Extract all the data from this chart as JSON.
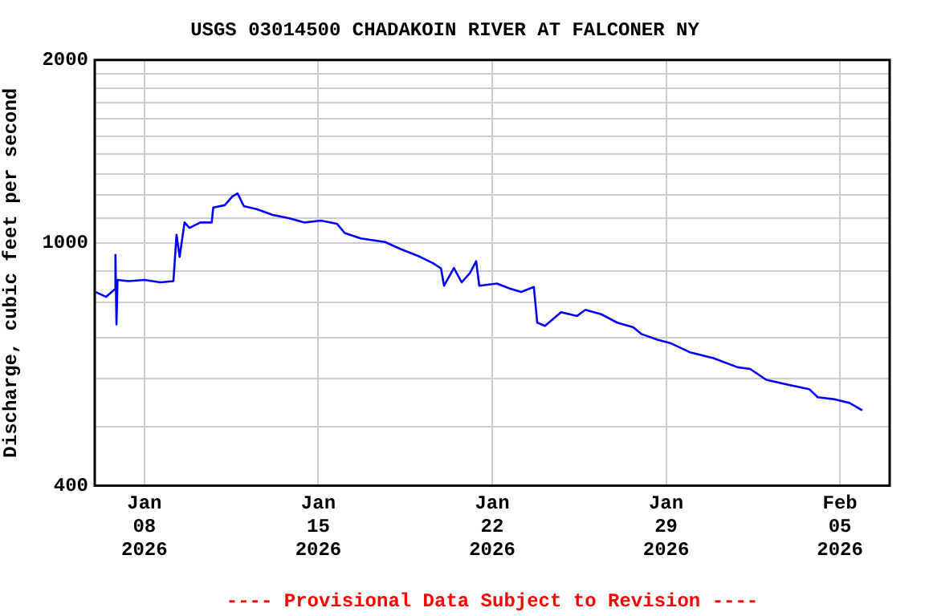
{
  "chart_data": {
    "type": "line",
    "title": "USGS 03014500 CHADAKOIN RIVER AT FALCONER NY",
    "ylabel": "Discharge, cubic feet per second",
    "annotations": [
      "---- Provisional Data Subject to Revision ----"
    ],
    "log": "y",
    "grid": true,
    "legend": false,
    "marker": "none",
    "line_style": "solid",
    "xlim": [
      "2026-01-06",
      "2026-02-07"
    ],
    "xticks": [
      {
        "value": "2026-01-08",
        "label": "Jan\n08\n2026"
      },
      {
        "value": "2026-01-15",
        "label": "Jan\n15\n2026"
      },
      {
        "value": "2026-01-22",
        "label": "Jan\n22\n2026"
      },
      {
        "value": "2026-01-29",
        "label": "Jan\n29\n2026"
      },
      {
        "value": "2026-02-05",
        "label": "Feb\n05\n2026"
      }
    ],
    "ylim": [
      400,
      2000
    ],
    "yticks": [
      400,
      {
        "value": 500,
        "label": null
      },
      {
        "value": 600,
        "label": null
      },
      {
        "value": 700,
        "label": null
      },
      {
        "value": 800,
        "label": null
      },
      {
        "value": 900,
        "label": null
      },
      1000,
      {
        "value": 1100,
        "label": null
      },
      {
        "value": 1200,
        "label": null
      },
      {
        "value": 1300,
        "label": null
      },
      {
        "value": 1400,
        "label": null
      },
      {
        "value": 1500,
        "label": null
      },
      {
        "value": 1600,
        "label": null
      },
      {
        "value": 1700,
        "label": null
      },
      {
        "value": 1800,
        "label": null
      },
      {
        "value": 1900,
        "label": null
      },
      2000
    ],
    "series": [
      {
        "color": "#0000ff",
        "x": [
          "2026-01-06T01:00",
          "2026-01-06T11:00",
          "2026-01-06T19:00",
          "2026-01-06T20:00",
          "2026-01-06T21:00",
          "2026-01-06T22:00",
          "2026-01-07T08:30",
          "2026-01-08T00:00",
          "2026-01-08T15:30",
          "2026-01-09T04:00",
          "2026-01-09T07:00",
          "2026-01-09T10:00",
          "2026-01-09T14:45",
          "2026-01-09T19:30",
          "2026-01-10T06:00",
          "2026-01-10T17:00",
          "2026-01-10T18:30",
          "2026-01-11T05:30",
          "2026-01-11T13:00",
          "2026-01-11T18:00",
          "2026-01-12T00:00",
          "2026-01-12T12:30",
          "2026-01-13T04:00",
          "2026-01-13T19:30",
          "2026-01-14T11:00",
          "2026-01-15T02:30",
          "2026-01-15T18:00",
          "2026-01-16T01:30",
          "2026-01-16T17:00",
          "2026-01-17T16:30",
          "2026-01-18T08:00",
          "2026-01-19T02:30",
          "2026-01-19T14:45",
          "2026-01-19T22:30",
          "2026-01-20T01:30",
          "2026-01-20T11:00",
          "2026-01-20T18:30",
          "2026-01-21T02:30",
          "2026-01-21T08:30",
          "2026-01-21T11:30",
          "2026-01-22T04:30",
          "2026-01-22T17:00",
          "2026-01-23T04:00",
          "2026-01-23T16:15",
          "2026-01-23T19:30",
          "2026-01-24T03:00",
          "2026-01-24T11:00",
          "2026-01-24T18:30",
          "2026-01-25T10:00",
          "2026-01-25T18:00",
          "2026-01-26T09:15",
          "2026-01-27T00:45",
          "2026-01-27T16:15",
          "2026-01-28T00:00",
          "2026-01-28T15:30",
          "2026-01-29T04:00",
          "2026-01-29T22:30",
          "2026-01-30T21:45",
          "2026-01-31T21:00",
          "2026-02-01T09:15",
          "2026-02-02T00:45",
          "2026-02-02T19:30",
          "2026-02-03T18:30",
          "2026-02-04T02:30",
          "2026-02-04T17:45",
          "2026-02-05T09:15",
          "2026-02-05T21:30"
        ],
        "values": [
          832,
          817,
          840,
          957,
          736,
          871,
          867,
          871,
          863,
          867,
          1033,
          950,
          1082,
          1060,
          1082,
          1082,
          1145,
          1155,
          1194,
          1208,
          1151,
          1138,
          1113,
          1100,
          1082,
          1090,
          1077,
          1040,
          1019,
          1005,
          978,
          950,
          928,
          910,
          852,
          911,
          863,
          894,
          935,
          852,
          859,
          843,
          832,
          848,
          741,
          732,
          752,
          771,
          760,
          778,
          765,
          741,
          728,
          710,
          695,
          686,
          663,
          648,
          626,
          622,
          597,
          587,
          576,
          559,
          555,
          547,
          532
        ]
      }
    ]
  }
}
